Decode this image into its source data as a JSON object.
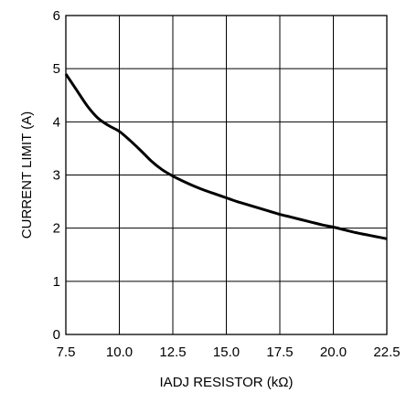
{
  "chart_data": {
    "type": "line",
    "title": "",
    "xlabel": "IADJ RESISTOR (kΩ)",
    "ylabel": "CURRENT LIMIT (A)",
    "xlim": [
      7.5,
      22.5
    ],
    "ylim": [
      0,
      6
    ],
    "grid": true,
    "x_ticks": [
      "7.5",
      "10.0",
      "12.5",
      "15.0",
      "17.5",
      "20.0",
      "22.5"
    ],
    "y_ticks": [
      "0",
      "1",
      "2",
      "3",
      "4",
      "5",
      "6"
    ],
    "series": [
      {
        "x": [
          7.5,
          8.0,
          8.5,
          9.0,
          9.5,
          10.0,
          10.5,
          11.0,
          11.5,
          12.0,
          12.5,
          13.0,
          13.5,
          14.0,
          14.5,
          15.0,
          15.5,
          16.0,
          16.5,
          17.0,
          17.5,
          18.0,
          18.5,
          19.0,
          19.5,
          20.0,
          20.5,
          21.0,
          21.5,
          22.0,
          22.5
        ],
        "y": [
          4.9,
          4.6,
          4.3,
          4.07,
          3.93,
          3.82,
          3.65,
          3.46,
          3.26,
          3.1,
          2.98,
          2.88,
          2.79,
          2.71,
          2.64,
          2.57,
          2.5,
          2.44,
          2.38,
          2.32,
          2.26,
          2.21,
          2.16,
          2.11,
          2.06,
          2.02,
          1.97,
          1.92,
          1.88,
          1.84,
          1.8
        ],
        "color": "#000000"
      }
    ]
  }
}
